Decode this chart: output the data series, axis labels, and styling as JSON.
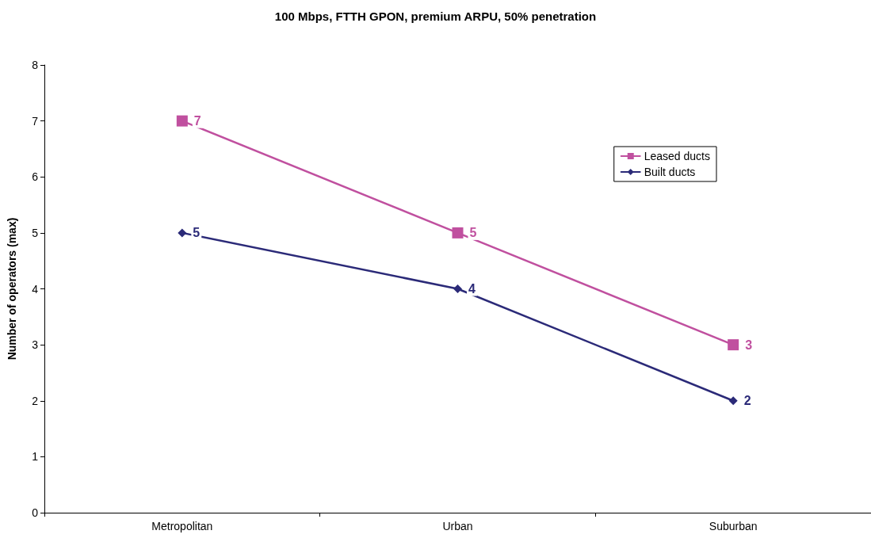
{
  "chart_data": {
    "type": "line",
    "title": "100 Mbps, FTTH GPON, premium ARPU, 50% penetration",
    "ylabel": "Number of operators (max)",
    "categories": [
      "Metropolitan",
      "Urban",
      "Suburban"
    ],
    "series": [
      {
        "name": "Leased ducts",
        "color": "#c0509f",
        "marker": "square",
        "values": [
          7,
          5,
          3
        ]
      },
      {
        "name": "Built ducts",
        "color": "#2b2a78",
        "marker": "diamond",
        "values": [
          5,
          4,
          2
        ]
      }
    ],
    "ylim": [
      0,
      8
    ],
    "yticks": [
      0,
      1,
      2,
      3,
      4,
      5,
      6,
      7,
      8
    ],
    "grid": false,
    "legend": "top right",
    "data_labels": true,
    "line_style": "solid"
  }
}
